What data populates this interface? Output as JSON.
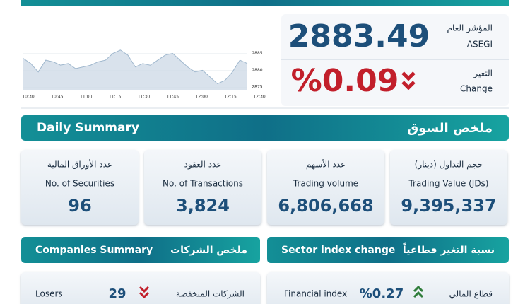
{
  "index": {
    "label_ar": "المؤشر العام",
    "label_en": "ASEGI",
    "value": "2883.49"
  },
  "change": {
    "label_ar": "التغير",
    "label_en": "Change",
    "value": "%0.09"
  },
  "chart_data": {
    "type": "line",
    "color": "#9fb7cd",
    "xticks": [
      "10:30",
      "10:45",
      "11:00",
      "11:15",
      "11:30",
      "11:45",
      "12:00",
      "12:15",
      "12:30"
    ],
    "values": [
      2883.5,
      2882,
      2879.5,
      2883,
      2882.5,
      2881.5,
      2882,
      2880.5,
      2881,
      2881.5,
      2882.5,
      2883,
      2885,
      2886,
      2884.5,
      2881,
      2882,
      2881.5,
      2883,
      2884.5,
      2885,
      2883,
      2881,
      2879.5,
      2880,
      2878,
      2876,
      2877,
      2879.5,
      2883,
      2882
    ],
    "ylim": [
      2874,
      2887
    ],
    "yticks": [
      2875,
      2880,
      2885
    ]
  },
  "daily_summary": {
    "title_en": "Daily Summary",
    "title_ar": "ملخص السوق",
    "cards": [
      {
        "label_ar": "عدد الأوراق المالية",
        "label_en": "No. of Securities",
        "value": "96"
      },
      {
        "label_ar": "عدد العقود",
        "label_en": "No. of Transactions",
        "value": "3,824"
      },
      {
        "label_ar": "عدد الأسهم",
        "label_en": "Trading volume",
        "value": "6,806,668"
      },
      {
        "label_ar": "حجم التداول (دينار)",
        "label_en": "Trading Value (JDs)",
        "value": "9,395,337"
      }
    ]
  },
  "companies_summary": {
    "title_en": "Companies Summary",
    "title_ar": "ملخص الشركات",
    "rows": [
      {
        "label_en": "Losers",
        "value": "29",
        "label_ar": "الشركات المنخفضة"
      }
    ]
  },
  "sector_change": {
    "title_en": "Sector index change",
    "title_ar": "نسبة التغير قطاعياً",
    "rows": [
      {
        "label_en": "Financial index",
        "value": "%0.27",
        "label_ar": "قطاع المالي"
      }
    ]
  }
}
